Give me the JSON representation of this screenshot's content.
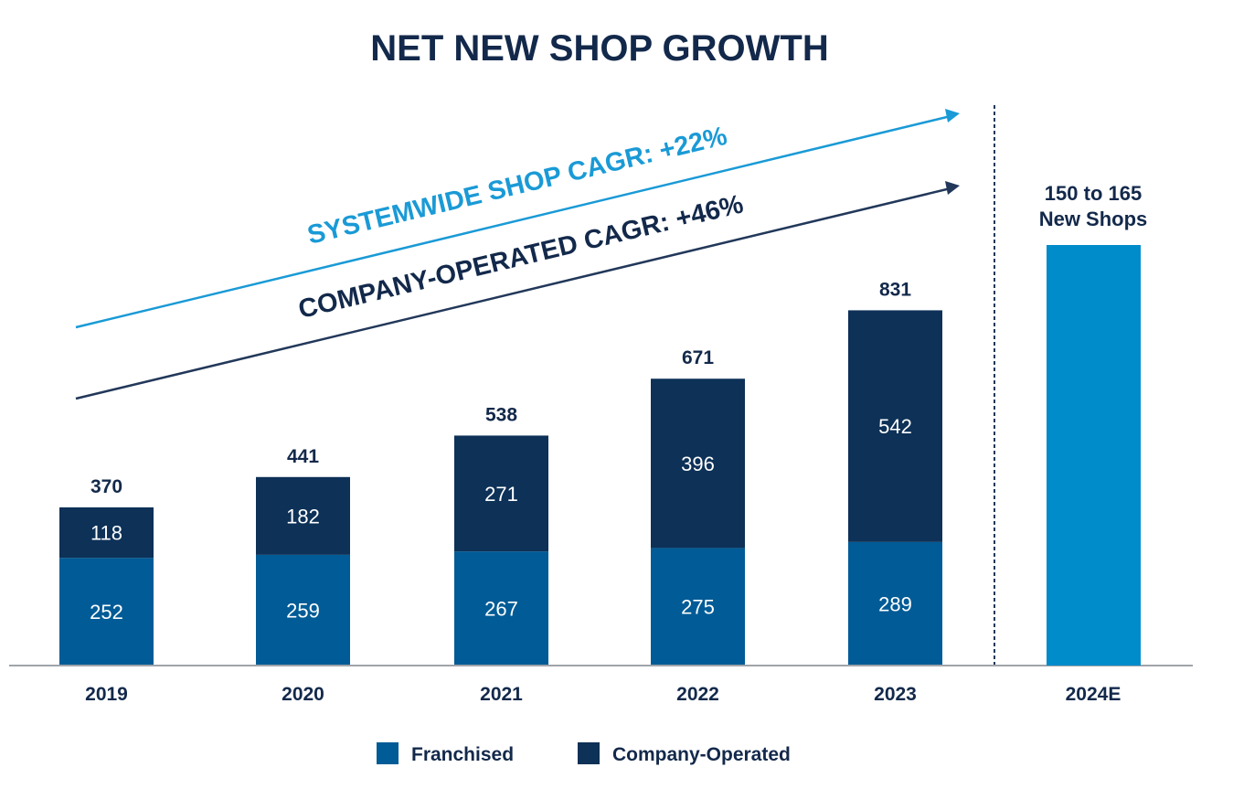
{
  "chart_data": {
    "type": "bar",
    "stacked": true,
    "title": "NET NEW SHOP GROWTH",
    "categories": [
      "2019",
      "2020",
      "2021",
      "2022",
      "2023"
    ],
    "series": [
      {
        "name": "Franchised",
        "values": [
          252,
          259,
          267,
          275,
          289
        ],
        "color": "#005b96"
      },
      {
        "name": "Company-Operated",
        "values": [
          118,
          182,
          271,
          396,
          542
        ],
        "color": "#0d3157"
      }
    ],
    "totals": [
      370,
      441,
      538,
      671,
      831
    ],
    "forecast": {
      "category": "2024E",
      "label_line1": "150 to 165",
      "label_line2": "New Shops",
      "color": "#008bcb"
    },
    "annotations": [
      {
        "text": "SYSTEMWIDE SHOP CAGR: +22%",
        "color": "#1a9ad6"
      },
      {
        "text": "COMPANY-OPERATED CAGR: +46%",
        "color": "#13294b"
      }
    ],
    "legend_position": "bottom",
    "grid": false,
    "ylim": [
      0,
      900
    ],
    "text_color": "#13294b"
  }
}
